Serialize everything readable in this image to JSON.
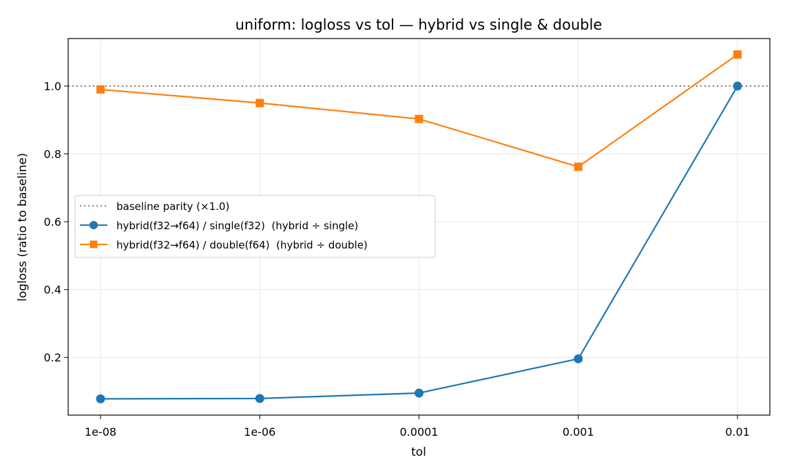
{
  "chart_data": {
    "type": "line",
    "title": "uniform: logloss vs tol — hybrid vs single & double",
    "xlabel": "tol",
    "ylabel": "logloss (ratio to baseline)",
    "categories": [
      "1e-08",
      "1e-06",
      "0.0001",
      "0.001",
      "0.01"
    ],
    "ylim": [
      0.03,
      1.14
    ],
    "yticks": [
      0.2,
      0.4,
      0.6,
      0.8,
      1.0
    ],
    "ytick_labels": [
      "0.2",
      "0.4",
      "0.6",
      "0.8",
      "1.0"
    ],
    "grid": true,
    "legend_position": "center-left",
    "baseline": {
      "name": "baseline parity (×1.0)",
      "value": 1.0,
      "style": "dotted",
      "color": "#808080"
    },
    "series": [
      {
        "name": "hybrid(f32→f64) / single(f32)  (hybrid ÷ single)",
        "values": [
          0.078,
          0.079,
          0.095,
          0.196,
          1.0
        ],
        "color": "#1f77b4",
        "marker": "circle"
      },
      {
        "name": "hybrid(f32→f64) / double(f64)  (hybrid ÷ double)",
        "values": [
          0.99,
          0.95,
          0.903,
          0.762,
          1.093
        ],
        "color": "#ff7f0e",
        "marker": "square"
      }
    ]
  }
}
